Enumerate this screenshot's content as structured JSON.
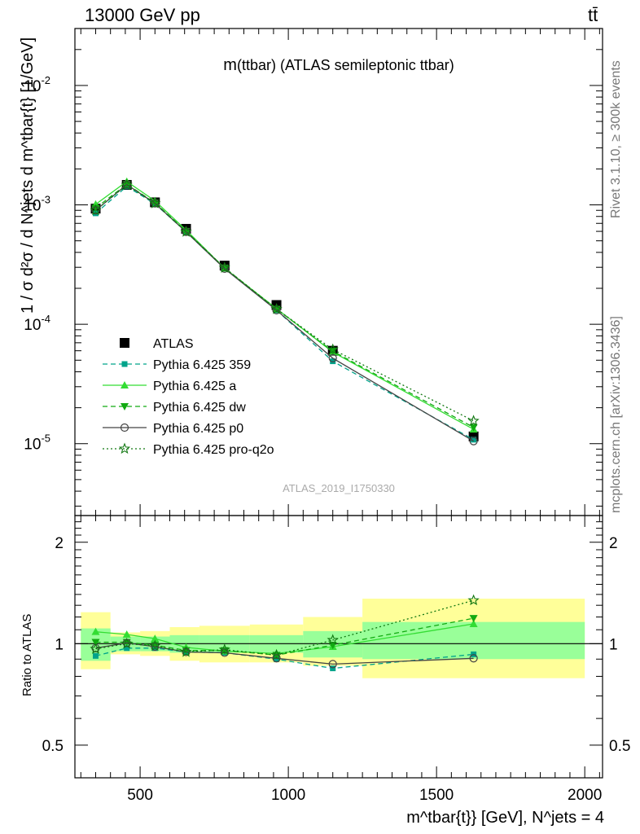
{
  "header": {
    "energy_label": "13000 GeV pp",
    "process_label": "tt̄"
  },
  "side_labels": {
    "rivet": "Rivet 3.1.10, ≥ 300k events",
    "source": "mcplots.cern.ch [arXiv:1306.3436]"
  },
  "plot": {
    "title_m": "m",
    "title_rest": "(ttbar) (ATLAS semileptonic ttbar)",
    "analysis_id": "ATLAS_2019_I1750330",
    "ylabel_main": "1 / σ d²σ / d N^jets d m^tbar{t} [1/GeV]",
    "ylabel_ratio": "Ratio to ATLAS",
    "xlabel": "m^tbar{t}} [GeV], N^jets = 4"
  },
  "colors": {
    "data": "#000000",
    "p359": "#00a38a",
    "pa": "#33dd33",
    "pdw": "#11aa11",
    "pp0": "#444444",
    "pq2o": "#117711",
    "band_inner": "#99ff99",
    "band_outer": "#ffff99"
  },
  "chart_data": [
    {
      "type": "line",
      "title": "m(ttbar) (ATLAS semileptonic ttbar)",
      "ylabel": "1 / σ d²σ / d N^jets d m^tbar{t} [1/GeV]",
      "yscale": "log",
      "ylim": [
        2.5e-06,
        0.03
      ],
      "xlim": [
        280,
        2060
      ],
      "xticks": [
        500,
        1000,
        1500,
        2000
      ],
      "yticks": [
        "10^-5",
        "10^-4",
        "10^-3",
        "10^-2"
      ],
      "legend": "left",
      "x": [
        350,
        455,
        550,
        655,
        785,
        960,
        1150,
        1625
      ],
      "bins": [
        300,
        400,
        500,
        600,
        700,
        870,
        1050,
        1250,
        2000
      ],
      "series": [
        {
          "name": "ATLAS",
          "marker": "square",
          "values": [
            0.00093,
            0.00147,
            0.00105,
            0.00063,
            0.00031,
            0.000145,
            6e-05,
            1.15e-05
          ]
        },
        {
          "name": "Pythia 6.425 359",
          "marker": "small-square",
          "dash": "dashed",
          "values": [
            0.00085,
            0.00143,
            0.00102,
            0.000595,
            0.000293,
            0.000131,
            4.9e-05,
            1.08e-05
          ]
        },
        {
          "name": "Pythia 6.425 a",
          "marker": "triangle-up",
          "dash": "solid",
          "values": [
            0.00101,
            0.00157,
            0.00108,
            0.000615,
            0.000295,
            0.000135,
            5.85e-05,
            1.32e-05
          ]
        },
        {
          "name": "Pythia 6.425 dw",
          "marker": "triangle-down",
          "dash": "dashed",
          "values": [
            0.00094,
            0.00149,
            0.00104,
            0.000602,
            0.000297,
            0.000134,
            5.95e-05,
            1.37e-05
          ]
        },
        {
          "name": "Pythia 6.425 p0",
          "marker": "circle",
          "dash": "solid",
          "values": [
            0.0009,
            0.00148,
            0.00103,
            0.000595,
            0.000292,
            0.000131,
            5.2e-05,
            1.05e-05
          ]
        },
        {
          "name": "Pythia 6.425 pro-q2o",
          "marker": "star",
          "dash": "dotted",
          "values": [
            0.0009,
            0.00147,
            0.00103,
            0.000595,
            0.000297,
            0.000134,
            6.15e-05,
            1.55e-05
          ]
        }
      ]
    },
    {
      "type": "line",
      "ylabel": "Ratio to ATLAS",
      "ylim": [
        0.4,
        2.4
      ],
      "yticks": [
        0.5,
        1,
        2
      ],
      "xlabel": "m^tbar{t}} [GeV], N^jets = 4",
      "x": [
        350,
        455,
        550,
        655,
        785,
        960,
        1150,
        1625
      ],
      "bins": [
        300,
        400,
        500,
        600,
        700,
        870,
        1050,
        1250,
        2000
      ],
      "band_inner": [
        [
          0.89,
          1.11
        ],
        [
          0.95,
          1.05
        ],
        [
          0.95,
          1.05
        ],
        [
          0.94,
          1.06
        ],
        [
          0.94,
          1.06
        ],
        [
          0.94,
          1.06
        ],
        [
          0.91,
          1.09
        ],
        [
          0.9,
          1.16
        ]
      ],
      "band_outer": [
        [
          0.84,
          1.24
        ],
        [
          0.93,
          1.08
        ],
        [
          0.92,
          1.09
        ],
        [
          0.89,
          1.12
        ],
        [
          0.88,
          1.13
        ],
        [
          0.88,
          1.14
        ],
        [
          0.86,
          1.2
        ],
        [
          0.79,
          1.36
        ]
      ],
      "series": [
        {
          "name": "Pythia 6.425 359",
          "values": [
            0.92,
            0.97,
            0.97,
            0.945,
            0.94,
            0.9,
            0.845,
            0.93
          ]
        },
        {
          "name": "Pythia 6.425 a",
          "values": [
            1.085,
            1.065,
            1.035,
            0.975,
            0.95,
            0.935,
            0.98,
            1.145
          ]
        },
        {
          "name": "Pythia 6.425 dw",
          "values": [
            1.01,
            1.01,
            0.99,
            0.955,
            0.955,
            0.925,
            0.99,
            1.19
          ]
        },
        {
          "name": "Pythia 6.425 p0",
          "values": [
            0.97,
            1.005,
            0.98,
            0.945,
            0.94,
            0.905,
            0.87,
            0.905
          ]
        },
        {
          "name": "Pythia 6.425 pro-q2o",
          "values": [
            0.965,
            1.0,
            0.985,
            0.945,
            0.96,
            0.925,
            1.025,
            1.345
          ]
        }
      ]
    }
  ]
}
